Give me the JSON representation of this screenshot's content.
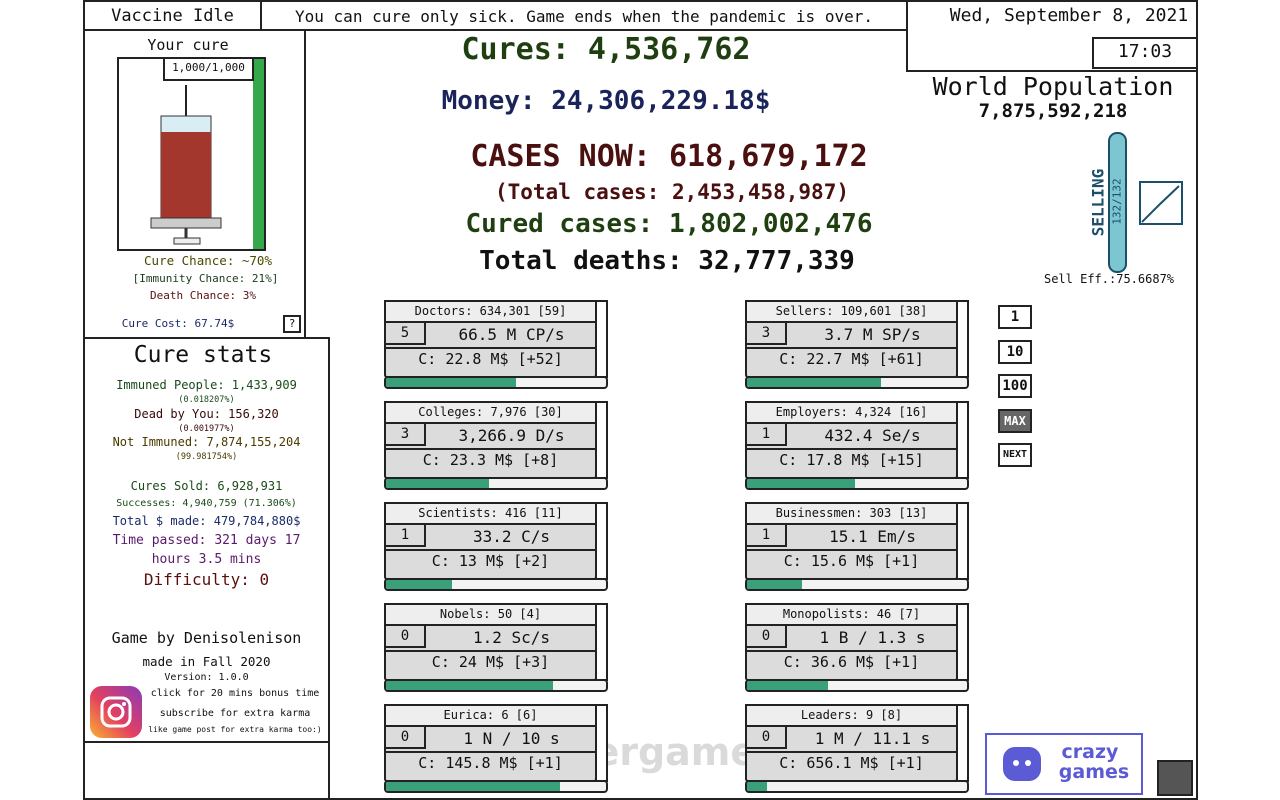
{
  "header": {
    "title": "Vaccine Idle",
    "message": "You can cure only sick. Game ends when the pandemic is over.",
    "date": "Wed, September 8, 2021",
    "time": "17:03"
  },
  "cure": {
    "heading": "Your cure",
    "capacity": "1,000/1,000",
    "cure_chance": "Cure Chance: ~70%",
    "immunity_chance": "[Immunity Chance: 21%]",
    "death_chance": "Death Chance: 3%",
    "cure_cost": "Cure Cost: 67.74$",
    "help": "?"
  },
  "stats": {
    "heading": "Cure stats",
    "immuned": "Immuned People: 1,433,909",
    "immuned_pct": "(0.018207%)",
    "dead": "Dead by You: 156,320",
    "dead_pct": "(0.001977%)",
    "not_immuned": "Not Immuned: 7,874,155,204",
    "not_immuned_pct": "(99.981754%)",
    "sold": "Cures Sold: 6,928,931",
    "successes": "Successes: 4,940,759 (71.306%)",
    "total_made": "Total $ made: 479,784,880$",
    "time_passed": "Time passed: 321 days 17 hours 3.5 mins",
    "difficulty": "Difficulty: 0"
  },
  "credits": {
    "author": "Game by Denisolenison",
    "made": "made in Fall 2020",
    "version": "Version: 1.0.0",
    "bonus": "click for 20 mins bonus time",
    "subscribe": "subscribe for extra karma",
    "like": "like game post for extra karma too:)"
  },
  "center": {
    "cures": "Cures: 4,536,762",
    "money": "Money: 24,306,229.18$",
    "cases_now": "CASES NOW: 618,679,172",
    "total_cases": "(Total cases: 2,453,458,987)",
    "cured_cases": "Cured cases: 1,802,002,476",
    "deaths": "Total deaths: 32,777,339"
  },
  "world": {
    "label": "World Population",
    "population": "7,875,592,218",
    "selling": "SELLING",
    "selling_count": "132/132",
    "sell_eff": "Sell Eff.:75.6687%"
  },
  "upgrades": [
    {
      "title": "Doctors: 634,301 [59]",
      "level": "5",
      "rate": "66.5 M CP/s",
      "cost": "C: 22.8 M$ [+52]",
      "progress": 59
    },
    {
      "title": "Colleges: 7,976 [30]",
      "level": "3",
      "rate": "3,266.9 D/s",
      "cost": "C: 23.3 M$ [+8]",
      "progress": 47
    },
    {
      "title": "Scientists: 416 [11]",
      "level": "1",
      "rate": "33.2 C/s",
      "cost": "C: 13 M$ [+2]",
      "progress": 30
    },
    {
      "title": "Nobels: 50 [4]",
      "level": "0",
      "rate": "1.2 Sc/s",
      "cost": "C: 24 M$ [+3]",
      "progress": 76
    },
    {
      "title": "Eurica: 6 [6]",
      "level": "0",
      "rate": "1 N / 10 s",
      "cost": "C: 145.8 M$ [+1]",
      "progress": 79
    },
    {
      "title": "Sellers: 109,601 [38]",
      "level": "3",
      "rate": "3.7 M SP/s",
      "cost": "C: 22.7 M$ [+61]",
      "progress": 61
    },
    {
      "title": "Employers: 4,324 [16]",
      "level": "1",
      "rate": "432.4 Se/s",
      "cost": "C: 17.8 M$ [+15]",
      "progress": 49
    },
    {
      "title": "Businessmen: 303 [13]",
      "level": "1",
      "rate": "15.1 Em/s",
      "cost": "C: 15.6 M$ [+1]",
      "progress": 25
    },
    {
      "title": "Monopolists: 46 [7]",
      "level": "0",
      "rate": "1 B / 1.3 s",
      "cost": "C: 36.6 M$ [+1]",
      "progress": 37
    },
    {
      "title": "Leaders: 9 [8]",
      "level": "0",
      "rate": "1 M / 11.1 s",
      "cost": "C: 656.1 M$ [+1]",
      "progress": 9
    }
  ],
  "buy_amounts": [
    "1",
    "10",
    "100",
    "MAX",
    "NEXT"
  ],
  "watermark": "silvergames.com",
  "sponsor": {
    "line1": "crazy",
    "line2": "games"
  }
}
